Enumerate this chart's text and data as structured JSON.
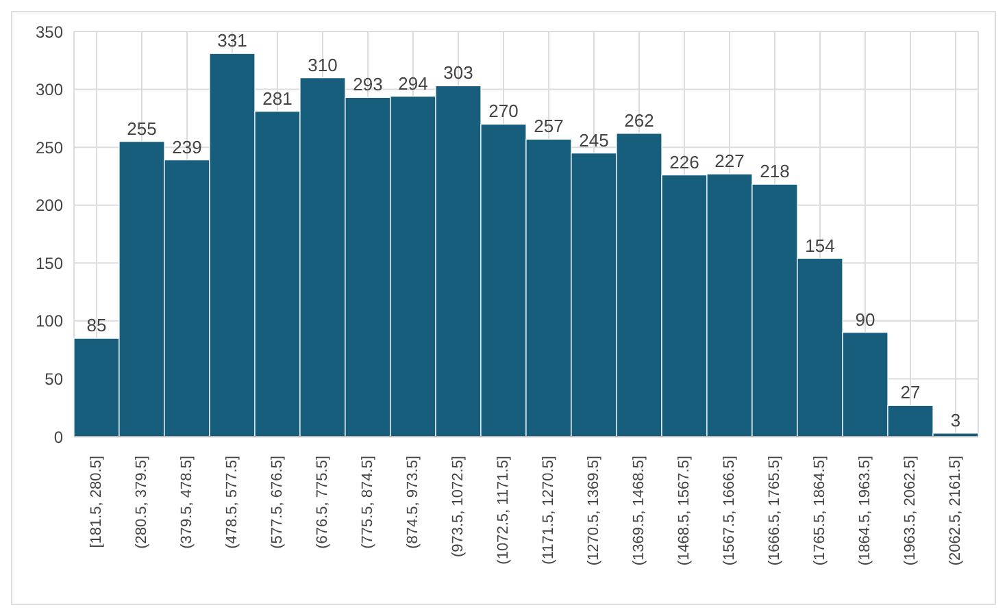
{
  "chart_data": {
    "type": "bar",
    "categories": [
      "[181.5, 280.5]",
      "(280.5, 379.5]",
      "(379.5, 478.5]",
      "(478.5, 577.5]",
      "(577.5, 676.5]",
      "(676.5, 775.5]",
      "(775.5, 874.5]",
      "(874.5, 973.5]",
      "(973.5, 1072.5]",
      "(1072.5, 1171.5]",
      "(1171.5, 1270.5]",
      "(1270.5, 1369.5]",
      "(1369.5, 1468.5]",
      "(1468.5, 1567.5]",
      "(1567.5, 1666.5]",
      "(1666.5, 1765.5]",
      "(1765.5, 1864.5]",
      "(1864.5, 1963.5]",
      "(1963.5, 2062.5]",
      "(2062.5, 2161.5]"
    ],
    "values": [
      85,
      255,
      239,
      331,
      281,
      310,
      293,
      294,
      303,
      270,
      257,
      245,
      262,
      226,
      227,
      218,
      154,
      90,
      27,
      3
    ],
    "color": "#175e7c",
    "ylim": [
      0,
      350
    ],
    "yticks": [
      0,
      50,
      100,
      150,
      200,
      250,
      300,
      350
    ],
    "grid": true,
    "data_labels": true
  }
}
